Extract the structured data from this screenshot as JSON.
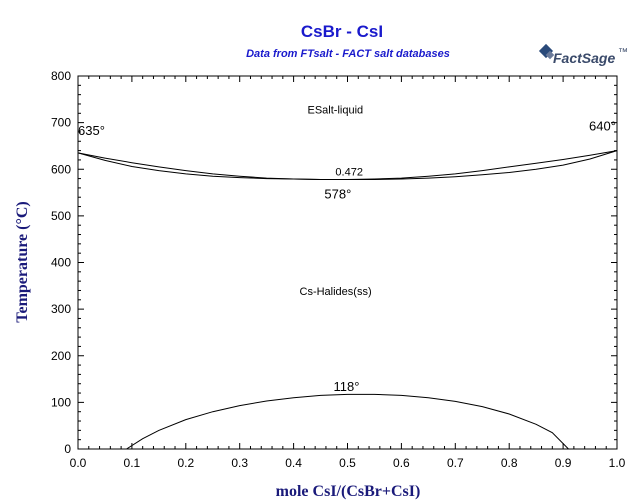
{
  "chart_data": {
    "type": "line",
    "title": "CsBr - CsI",
    "subtitle": "Data from FTsalt - FACT salt databases",
    "xlabel": "mole CsI/(CsBr+CsI)",
    "ylabel": "Temperature (°C)",
    "xlim": [
      0,
      1
    ],
    "ylim": [
      0,
      800
    ],
    "xticks": [
      "0.0",
      "0.1",
      "0.2",
      "0.3",
      "0.4",
      "0.5",
      "0.6",
      "0.7",
      "0.8",
      "0.9",
      "1.0"
    ],
    "yticks": [
      "0",
      "100",
      "200",
      "300",
      "400",
      "500",
      "600",
      "700",
      "800"
    ],
    "grid": false,
    "series": [
      {
        "values": [
          [
            0.0,
            635
          ],
          [
            0.05,
            624
          ],
          [
            0.1,
            614
          ],
          [
            0.15,
            605
          ],
          [
            0.2,
            597
          ],
          [
            0.25,
            590
          ],
          [
            0.3,
            585
          ],
          [
            0.35,
            581
          ],
          [
            0.4,
            579
          ],
          [
            0.45,
            578
          ],
          [
            0.472,
            578
          ],
          [
            0.5,
            578
          ],
          [
            0.55,
            579
          ],
          [
            0.6,
            581
          ],
          [
            0.65,
            585
          ],
          [
            0.7,
            590
          ],
          [
            0.75,
            597
          ],
          [
            0.8,
            605
          ],
          [
            0.85,
            613
          ],
          [
            0.9,
            621
          ],
          [
            0.95,
            630
          ],
          [
            1.0,
            640
          ]
        ]
      },
      {
        "values": [
          [
            0.0,
            635
          ],
          [
            0.05,
            619
          ],
          [
            0.1,
            606
          ],
          [
            0.15,
            597
          ],
          [
            0.2,
            590
          ],
          [
            0.25,
            585
          ],
          [
            0.3,
            582
          ],
          [
            0.35,
            580
          ],
          [
            0.4,
            579
          ],
          [
            0.45,
            578
          ],
          [
            0.472,
            578
          ],
          [
            0.5,
            578
          ],
          [
            0.55,
            578
          ],
          [
            0.6,
            579
          ],
          [
            0.65,
            581
          ],
          [
            0.7,
            584
          ],
          [
            0.75,
            588
          ],
          [
            0.8,
            593
          ],
          [
            0.85,
            600
          ],
          [
            0.9,
            609
          ],
          [
            0.95,
            622
          ],
          [
            1.0,
            640
          ]
        ]
      },
      {
        "values": [
          [
            0.09,
            0
          ],
          [
            0.12,
            22
          ],
          [
            0.15,
            40
          ],
          [
            0.2,
            63
          ],
          [
            0.25,
            80
          ],
          [
            0.3,
            93
          ],
          [
            0.35,
            103
          ],
          [
            0.4,
            110
          ],
          [
            0.45,
            115
          ],
          [
            0.5,
            117
          ],
          [
            0.55,
            117
          ],
          [
            0.6,
            115
          ],
          [
            0.65,
            110
          ],
          [
            0.7,
            102
          ],
          [
            0.75,
            91
          ],
          [
            0.8,
            75
          ],
          [
            0.85,
            53
          ],
          [
            0.88,
            35
          ],
          [
            0.91,
            0
          ]
        ]
      }
    ],
    "annotations": [
      {
        "text": "635°",
        "x": 0.0,
        "y": 635
      },
      {
        "text": "640°",
        "x": 1.0,
        "y": 640
      },
      {
        "text": "ESalt-liquid",
        "x": 0.5,
        "y": 720
      },
      {
        "text": "0.472",
        "x": 0.472,
        "y": 578
      },
      {
        "text": "578°",
        "x": 0.472,
        "y": 578
      },
      {
        "text": "Cs-Halides(ss)",
        "x": 0.5,
        "y": 330
      },
      {
        "text": "118°",
        "x": 0.5,
        "y": 118
      }
    ]
  },
  "logo": {
    "main": "FactSage",
    "sub": "™"
  }
}
